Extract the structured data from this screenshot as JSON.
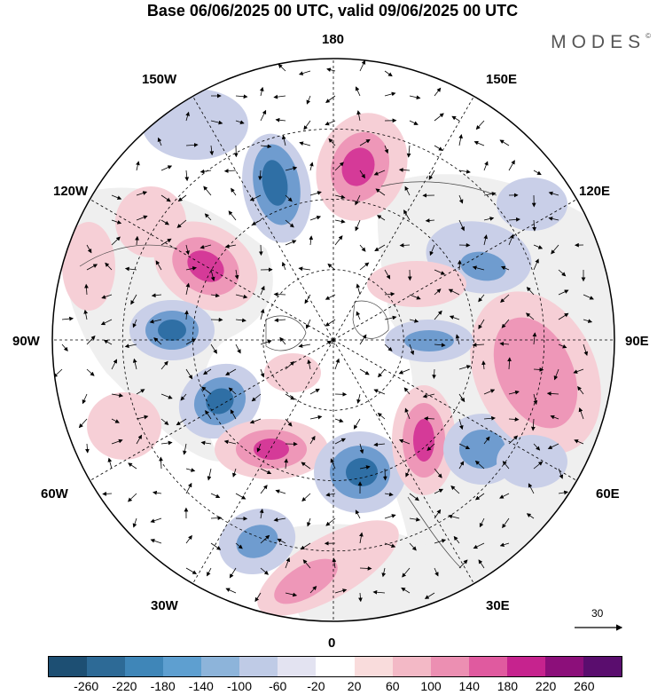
{
  "title": "Base 06/06/2025 00 UTC, valid 09/06/2025 00 UTC",
  "brand": "MODES",
  "brand_mark": "©",
  "longitude_labels": {
    "top": "180",
    "bottom": "0",
    "left": "90W",
    "right": "90E",
    "upper_left_1": "150W",
    "upper_left_2": "120W",
    "upper_right_1": "150E",
    "upper_right_2": "120E",
    "lower_left_1": "60W",
    "lower_left_2": "30W",
    "lower_right_1": "60E",
    "lower_right_2": "30E"
  },
  "vector_scale": {
    "label": "30"
  },
  "colorbar": {
    "ticks": [
      "-260",
      "-220",
      "-180",
      "-140",
      "-100",
      "-60",
      "-20",
      "20",
      "60",
      "100",
      "140",
      "180",
      "220",
      "260"
    ],
    "colors": [
      "#1d4f73",
      "#2d6a96",
      "#3f86b8",
      "#5e9fd0",
      "#8db4da",
      "#bfcbe6",
      "#e3e3f1",
      "#ffffff",
      "#f9dcdc",
      "#f3b9c6",
      "#ec8fb2",
      "#e05a9f",
      "#c6238e",
      "#8c0f7a",
      "#5a0d6e"
    ]
  },
  "anomaly_palette": {
    "neg_strong": "#2f6fa5",
    "neg_mid": "#6f9ccf",
    "neg_weak": "#c9cfe8",
    "pos_weak": "#f6cfd6",
    "pos_mid": "#ee97b8",
    "pos_strong": "#d53a98",
    "land": "#efefef"
  },
  "map_features": {
    "projection": "north-polar-stereographic",
    "field": "geopotential height anomaly with wind vectors"
  }
}
